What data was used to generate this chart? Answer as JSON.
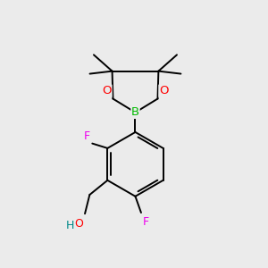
{
  "bg_color": "#ebebeb",
  "bond_color": "#000000",
  "O_color": "#ff0000",
  "B_color": "#00bb00",
  "F_color": "#ee00ee",
  "OH_O_color": "#ff0000",
  "OH_H_color": "#008888",
  "lw": 1.4,
  "figsize": [
    3.0,
    3.0
  ],
  "dpi": 100,
  "xlim": [
    0,
    10
  ],
  "ylim": [
    0,
    10
  ]
}
